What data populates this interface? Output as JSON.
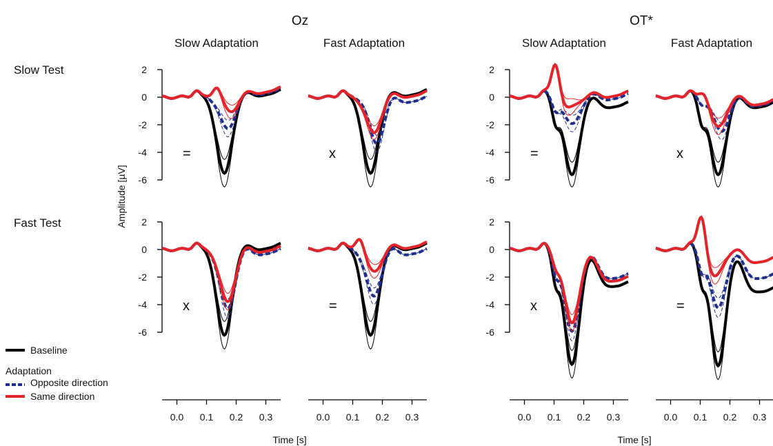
{
  "figure": {
    "groups": [
      "Oz",
      "OT*"
    ],
    "columns": [
      "Slow Adaptation",
      "Fast Adaptation"
    ],
    "rows": [
      "Slow Test",
      "Fast Test"
    ],
    "ylabel": "Amplitude [µV]",
    "xlabel": "Time [s]",
    "legend": {
      "baseline": "Baseline",
      "adaptation_heading": "Adaptation",
      "opposite": "Opposite direction",
      "same": "Same direction"
    },
    "colors": {
      "baseline": "#000000",
      "opposite": "#1f2f8f",
      "same": "#e3242b"
    }
  },
  "chart_data": {
    "type": "line",
    "xlim": [
      -0.05,
      0.35
    ],
    "ylim": [
      -6,
      2
    ],
    "xticks": [
      "0.0",
      "0.1",
      "0.2",
      "0.3"
    ],
    "yticks": [
      "2",
      "0",
      "-2",
      "-4",
      "-6"
    ],
    "panels": [
      {
        "group": "Oz",
        "row": "Slow Test",
        "col": "Slow Adaptation",
        "mark": "=",
        "series": [
          {
            "name": "Baseline",
            "peak_time": 0.16,
            "peak": -5.6,
            "ci": 1.0,
            "end": 0.3
          },
          {
            "name": "Opposite direction",
            "peak_time": 0.17,
            "peak": -2.3,
            "ci": 0.6,
            "end": 0.4
          },
          {
            "name": "Same direction",
            "peak_time": 0.18,
            "peak": -1.0,
            "ci": 0.5,
            "pre_peak": 0.9,
            "end": 0.5
          }
        ]
      },
      {
        "group": "Oz",
        "row": "Slow Test",
        "col": "Fast Adaptation",
        "mark": "x",
        "series": [
          {
            "name": "Baseline",
            "peak_time": 0.16,
            "peak": -5.6,
            "ci": 1.0,
            "end": 0.3
          },
          {
            "name": "Opposite direction",
            "peak_time": 0.18,
            "peak": -3.3,
            "ci": 0.6,
            "end": -0.2
          },
          {
            "name": "Same direction",
            "peak_time": 0.17,
            "peak": -2.6,
            "ci": 0.5,
            "end": 0.2
          }
        ]
      },
      {
        "group": "Oz",
        "row": "Fast Test",
        "col": "Slow Adaptation",
        "mark": "x",
        "series": [
          {
            "name": "Baseline",
            "peak_time": 0.16,
            "peak": -6.3,
            "ci": 1.0,
            "end": 0.2
          },
          {
            "name": "Opposite direction",
            "peak_time": 0.17,
            "peak": -4.3,
            "ci": 0.7,
            "end": -0.2
          },
          {
            "name": "Same direction",
            "peak_time": 0.17,
            "peak": -3.8,
            "ci": 0.6,
            "end": 0.0
          }
        ]
      },
      {
        "group": "Oz",
        "row": "Fast Test",
        "col": "Fast Adaptation",
        "mark": "=",
        "series": [
          {
            "name": "Baseline",
            "peak_time": 0.16,
            "peak": -6.3,
            "ci": 1.0,
            "end": 0.2
          },
          {
            "name": "Opposite direction",
            "peak_time": 0.17,
            "peak": -3.4,
            "ci": 0.6,
            "end": -0.2
          },
          {
            "name": "Same direction",
            "peak_time": 0.17,
            "peak": -1.6,
            "ci": 0.5,
            "pre_peak": 1.1,
            "end": 0.3
          }
        ]
      },
      {
        "group": "OT*",
        "row": "Slow Test",
        "col": "Slow Adaptation",
        "mark": "=",
        "series": [
          {
            "name": "Baseline",
            "peak_time": 0.16,
            "peak": -5.7,
            "ci": 0.9,
            "early": -1.6,
            "end": -0.6
          },
          {
            "name": "Opposite direction",
            "peak_time": 0.16,
            "peak": -2.0,
            "ci": 0.6,
            "early": -0.9,
            "end": 0.0
          },
          {
            "name": "Same direction",
            "peak_time": 0.15,
            "peak": -0.8,
            "ci": 0.6,
            "pre_peak": 2.5,
            "end": 0.2
          }
        ]
      },
      {
        "group": "OT*",
        "row": "Slow Test",
        "col": "Fast Adaptation",
        "mark": "x",
        "series": [
          {
            "name": "Baseline",
            "peak_time": 0.16,
            "peak": -5.7,
            "ci": 0.9,
            "early": -1.6,
            "end": -0.6
          },
          {
            "name": "Opposite direction",
            "peak_time": 0.17,
            "peak": -2.5,
            "ci": 0.6,
            "early": -0.5,
            "end": -0.5
          },
          {
            "name": "Same direction",
            "peak_time": 0.16,
            "peak": -2.2,
            "ci": 0.6,
            "pre_peak": 0.6,
            "end": -0.4
          }
        ]
      },
      {
        "group": "OT*",
        "row": "Fast Test",
        "col": "Slow Adaptation",
        "mark": "x",
        "series": [
          {
            "name": "Baseline",
            "peak_time": 0.16,
            "peak": -8.4,
            "ci": 1.0,
            "early": -2.0,
            "end": -2.6
          },
          {
            "name": "Opposite direction",
            "peak_time": 0.16,
            "peak": -6.0,
            "ci": 0.7,
            "early": -1.5,
            "end": -2.0
          },
          {
            "name": "Same direction",
            "peak_time": 0.16,
            "peak": -5.4,
            "ci": 0.6,
            "early": -1.0,
            "end": -2.2
          }
        ]
      },
      {
        "group": "OT*",
        "row": "Fast Test",
        "col": "Fast Adaptation",
        "mark": "=",
        "series": [
          {
            "name": "Baseline",
            "peak_time": 0.16,
            "peak": -8.5,
            "ci": 1.0,
            "early": -2.0,
            "end": -3.0
          },
          {
            "name": "Opposite direction",
            "peak_time": 0.16,
            "peak": -4.3,
            "ci": 0.7,
            "early": -1.4,
            "end": -2.0
          },
          {
            "name": "Same direction",
            "peak_time": 0.15,
            "peak": -2.0,
            "ci": 0.6,
            "pre_peak": 2.7,
            "end": -0.8
          }
        ]
      }
    ]
  }
}
